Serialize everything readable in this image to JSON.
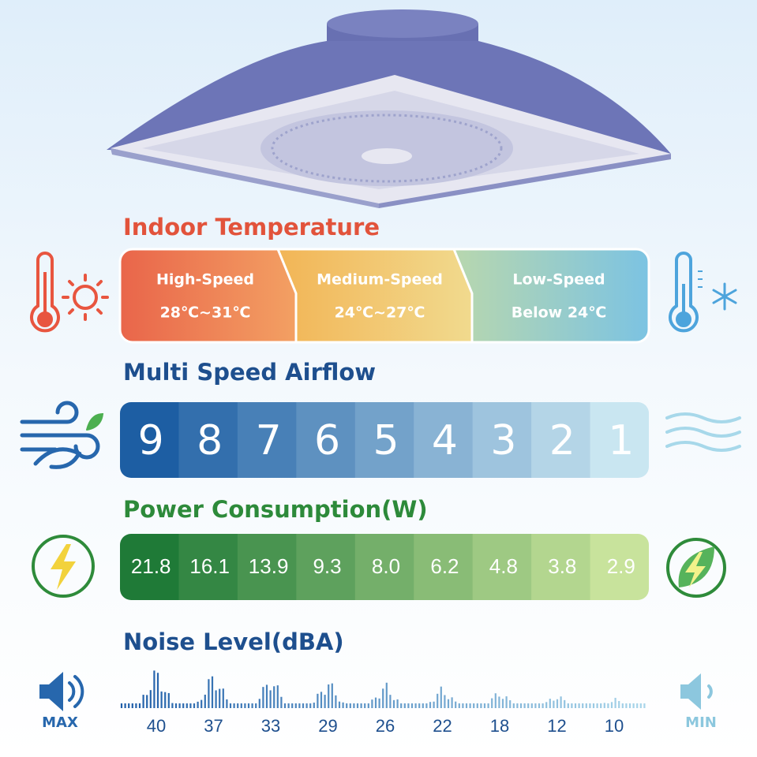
{
  "sections": {
    "temperature": {
      "title": "Indoor Temperature",
      "segments": [
        {
          "label": "High-Speed",
          "range": "28℃~31℃"
        },
        {
          "label": "Medium-Speed",
          "range": "24℃~27℃"
        },
        {
          "label": "Low-Speed",
          "range": "Below 24℃"
        }
      ]
    },
    "airflow": {
      "title": "Multi Speed Airflow",
      "levels": [
        "9",
        "8",
        "7",
        "6",
        "5",
        "4",
        "3",
        "2",
        "1"
      ]
    },
    "power": {
      "title": "Power Consumption(W)",
      "values": [
        "21.8",
        "16.1",
        "13.9",
        "9.3",
        "8.0",
        "6.2",
        "4.8",
        "3.8",
        "2.9"
      ]
    },
    "noise": {
      "title": "Noise Level(dBA)",
      "values": [
        "40",
        "37",
        "33",
        "29",
        "26",
        "22",
        "18",
        "12",
        "10"
      ],
      "max_label": "MAX",
      "min_label": "MIN"
    }
  }
}
